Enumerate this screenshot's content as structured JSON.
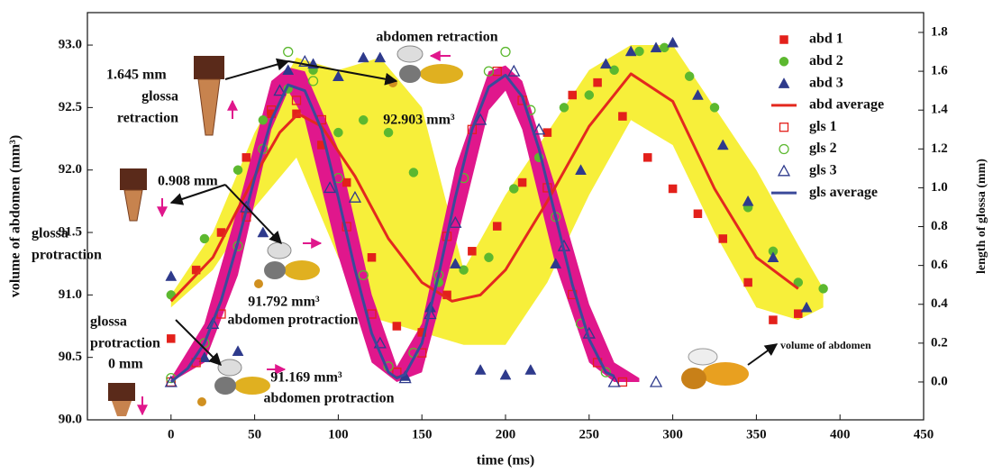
{
  "chart_data": {
    "type": "scatter",
    "xlabel": "time (ms)",
    "ylabel": "volume of abdomen (mm³)",
    "y2label": "length of glossa (mm)",
    "xlim": [
      -50,
      450
    ],
    "xticks": [
      0,
      50,
      100,
      150,
      200,
      250,
      300,
      350,
      400,
      450
    ],
    "ylim": [
      90.0,
      93.26
    ],
    "yticks": [
      {
        "value": 90.0,
        "label": "90.0"
      },
      90.5,
      {
        "value": 91.0,
        "label": "91.0"
      },
      91.5,
      {
        "value": 92.0,
        "label": "92.0"
      },
      92.5,
      {
        "value": 93.0,
        "label": "93.0"
      }
    ],
    "y2lim": [
      -0.195,
      1.902
    ],
    "y2ticks": [
      {
        "value": 0.0,
        "label": "0.0"
      },
      0.2,
      0.4,
      0.6,
      0.8,
      {
        "value": 1.0,
        "label": "1.0"
      },
      1.2,
      1.4,
      1.6,
      1.8
    ],
    "legend": "top-right",
    "bands": [
      {
        "color": "#f7ef3a",
        "axis": "y",
        "x": [
          0,
          25,
          50,
          75,
          100,
          125,
          150,
          175,
          200,
          225,
          250,
          275,
          300,
          325,
          350,
          375,
          390
        ],
        "upper": [
          91.0,
          91.5,
          92.3,
          92.9,
          92.8,
          92.9,
          92.5,
          91.2,
          91.8,
          92.3,
          92.8,
          93.0,
          93.0,
          92.5,
          92.0,
          91.4,
          91.05
        ],
        "lower": [
          90.9,
          91.2,
          91.7,
          92.1,
          91.3,
          90.8,
          90.7,
          90.6,
          90.6,
          91.1,
          91.8,
          92.4,
          92.2,
          91.5,
          90.9,
          90.8,
          90.9
        ]
      },
      {
        "color": "#e0178c",
        "axis": "y2",
        "x": [
          0,
          20,
          40,
          60,
          70,
          80,
          100,
          120,
          135,
          150,
          170,
          190,
          200,
          210,
          230,
          250,
          265,
          280
        ],
        "upper": [
          0.02,
          0.3,
          0.9,
          1.55,
          1.62,
          1.6,
          1.2,
          0.45,
          0.08,
          0.3,
          1.1,
          1.6,
          1.63,
          1.55,
          1.0,
          0.4,
          0.1,
          0.02
        ],
        "lower": [
          0.0,
          0.1,
          0.55,
          1.3,
          1.5,
          1.35,
          0.65,
          0.1,
          0.0,
          0.05,
          0.7,
          1.4,
          1.5,
          1.3,
          0.6,
          0.1,
          0.0,
          0.0
        ]
      }
    ],
    "series": [
      {
        "name": "abd 1",
        "color": "#e3201b",
        "marker": "square",
        "filled": true,
        "x": [
          0,
          15,
          30,
          45,
          60,
          75,
          90,
          105,
          120,
          135,
          150,
          165,
          180,
          195,
          210,
          225,
          240,
          255,
          270,
          285,
          300,
          315,
          330,
          345,
          360,
          375
        ],
        "values": [
          90.65,
          91.2,
          91.5,
          92.1,
          92.45,
          92.45,
          92.2,
          91.9,
          91.3,
          90.75,
          90.7,
          91.0,
          91.35,
          91.55,
          91.9,
          92.3,
          92.6,
          92.7,
          92.43,
          92.1,
          91.85,
          91.65,
          91.45,
          91.1,
          90.8,
          90.85
        ]
      },
      {
        "name": "abd 2",
        "color": "#5cb82f",
        "marker": "circle",
        "filled": true,
        "x": [
          0,
          20,
          40,
          55,
          70,
          85,
          100,
          115,
          130,
          145,
          160,
          175,
          190,
          205,
          220,
          235,
          250,
          265,
          280,
          295,
          310,
          325,
          345,
          360,
          375,
          390
        ],
        "values": [
          91.0,
          91.45,
          92.0,
          92.4,
          92.65,
          92.8,
          92.3,
          92.4,
          92.3,
          91.98,
          91.1,
          91.2,
          91.3,
          91.85,
          92.1,
          92.5,
          92.6,
          92.8,
          92.95,
          92.98,
          92.75,
          92.5,
          91.7,
          91.35,
          91.1,
          91.05
        ]
      },
      {
        "name": "abd 3",
        "color": "#2e3a8c",
        "marker": "triangle",
        "filled": true,
        "x": [
          0,
          20,
          40,
          55,
          70,
          85,
          100,
          115,
          125,
          140,
          155,
          170,
          185,
          200,
          215,
          230,
          245,
          260,
          275,
          290,
          300,
          315,
          330,
          345,
          360,
          380
        ],
        "values": [
          91.15,
          90.5,
          90.55,
          91.5,
          92.8,
          92.85,
          92.75,
          92.9,
          92.9,
          90.35,
          90.9,
          91.25,
          90.4,
          90.36,
          90.4,
          91.25,
          92.0,
          92.85,
          92.95,
          92.98,
          93.02,
          92.6,
          92.2,
          91.75,
          91.3,
          90.9
        ]
      },
      {
        "name": "abd average",
        "color": "#e3291e",
        "marker": "line",
        "x": [
          0,
          25,
          50,
          65,
          76,
          90,
          110,
          130,
          150,
          168,
          185,
          200,
          225,
          250,
          275,
          300,
          325,
          350,
          375
        ],
        "values": [
          90.95,
          91.3,
          91.95,
          92.3,
          92.45,
          92.35,
          91.95,
          91.45,
          91.1,
          90.95,
          91.0,
          91.2,
          91.75,
          92.35,
          92.77,
          92.55,
          91.85,
          91.3,
          91.05
        ]
      },
      {
        "name": "gls 1",
        "color": "#e3201b",
        "marker": "square",
        "filled": false,
        "axis": "y2",
        "x": [
          0,
          15,
          30,
          45,
          60,
          75,
          90,
          105,
          120,
          135,
          150,
          165,
          180,
          195,
          210,
          225,
          240,
          255,
          270
        ],
        "values": [
          0.0,
          0.1,
          0.35,
          0.85,
          1.4,
          1.45,
          1.35,
          0.8,
          0.35,
          0.05,
          0.15,
          0.75,
          1.3,
          1.6,
          1.45,
          1.0,
          0.45,
          0.1,
          0.0
        ]
      },
      {
        "name": "gls 2",
        "color": "#5cb82f",
        "marker": "circle",
        "filled": false,
        "axis": "y2",
        "x": [
          0,
          20,
          40,
          55,
          70,
          85,
          100,
          115,
          130,
          145,
          160,
          175,
          190,
          200,
          215,
          230,
          245,
          260
        ],
        "values": [
          0.02,
          0.2,
          0.7,
          1.2,
          1.7,
          1.55,
          1.05,
          0.55,
          0.08,
          0.15,
          0.55,
          1.05,
          1.6,
          1.7,
          1.4,
          0.85,
          0.3,
          0.05
        ]
      },
      {
        "name": "gls 3",
        "color": "#2e3a8c",
        "marker": "triangle",
        "filled": false,
        "axis": "y2",
        "x": [
          0,
          25,
          45,
          65,
          80,
          95,
          110,
          125,
          140,
          155,
          170,
          185,
          205,
          220,
          235,
          250,
          265,
          290
        ],
        "values": [
          0.0,
          0.3,
          0.9,
          1.5,
          1.65,
          1.0,
          0.95,
          0.2,
          0.02,
          0.35,
          0.82,
          1.35,
          1.6,
          1.3,
          0.7,
          0.25,
          0.0,
          0.0
        ]
      },
      {
        "name": "gls average",
        "color": "#3a4a9a",
        "marker": "line",
        "axis": "y2",
        "x": [
          0,
          10,
          20,
          30,
          40,
          50,
          60,
          70,
          80,
          90,
          100,
          110,
          120,
          130,
          135,
          140,
          150,
          160,
          170,
          180,
          190,
          200,
          210,
          220,
          230,
          240,
          250,
          260,
          265
        ],
        "values": [
          0.0,
          0.07,
          0.2,
          0.42,
          0.72,
          1.05,
          1.35,
          1.53,
          1.5,
          1.3,
          0.95,
          0.58,
          0.25,
          0.05,
          0.02,
          0.04,
          0.2,
          0.55,
          0.95,
          1.3,
          1.52,
          1.58,
          1.47,
          1.2,
          0.85,
          0.5,
          0.22,
          0.05,
          0.03
        ]
      }
    ],
    "annotations": [
      "abdomen retraction",
      "1.645 mm",
      "glossa",
      "retraction",
      "92.903 mm³",
      "0.908 mm",
      "glossa",
      "protraction",
      "91.792 mm³",
      "abdomen protraction",
      "glossa",
      "protraction",
      "0 mm",
      "91.169 mm³",
      "abdomen protraction",
      "volume of abdomen"
    ]
  }
}
